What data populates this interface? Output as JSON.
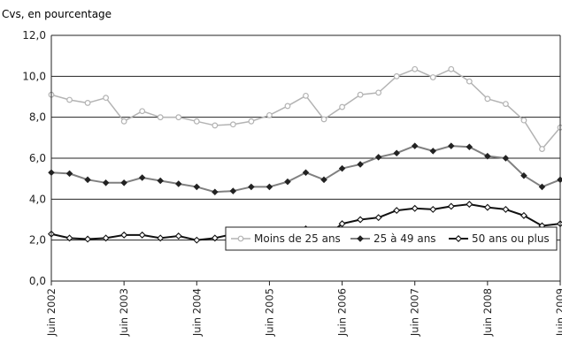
{
  "chart_data": {
    "type": "line",
    "ylabel": "Cvs, en pourcentage",
    "ylim": [
      0,
      12
    ],
    "yticks": [
      "0,0",
      "2,0",
      "4,0",
      "6,0",
      "8,0",
      "10,0",
      "12,0"
    ],
    "ytick_values": [
      0,
      2,
      4,
      6,
      8,
      10,
      12
    ],
    "xtick_labels": [
      "Juin 2002",
      "Juin 2003",
      "Juin 2004",
      "Juin 2005",
      "Juin 2006",
      "Juin 2007",
      "Juin 2008",
      "Juin 2009"
    ],
    "grid": "horizontal",
    "legend_placement": "bottom-right",
    "series": [
      {
        "name": "Moins de 25 ans",
        "color": "#b3b3b3",
        "marker": "open-circle",
        "values": [
          9.1,
          8.85,
          8.7,
          8.95,
          7.8,
          8.3,
          8.0,
          8.0,
          7.8,
          7.6,
          7.65,
          7.8,
          8.1,
          8.55,
          9.05,
          7.9,
          8.5,
          9.1,
          9.2,
          10.0,
          10.35,
          9.95,
          10.35,
          9.75,
          8.9,
          8.65,
          7.85,
          6.45,
          7.5
        ]
      },
      {
        "name": "25 à 49 ans",
        "color": "#808080",
        "marker": "filled-diamond",
        "values": [
          5.3,
          5.25,
          4.95,
          4.8,
          4.8,
          5.05,
          4.9,
          4.75,
          4.6,
          4.35,
          4.4,
          4.6,
          4.6,
          4.85,
          5.3,
          4.95,
          5.5,
          5.7,
          6.05,
          6.25,
          6.6,
          6.35,
          6.6,
          6.55,
          6.1,
          6.0,
          5.15,
          4.6,
          4.95
        ]
      },
      {
        "name": "50 ans ou plus",
        "color": "#111111",
        "marker": "open-diamond",
        "values": [
          2.3,
          2.1,
          2.05,
          2.1,
          2.25,
          2.25,
          2.1,
          2.2,
          2.0,
          2.1,
          2.3,
          2.2,
          2.3,
          2.4,
          2.55,
          2.1,
          2.8,
          3.0,
          3.1,
          3.45,
          3.55,
          3.5,
          3.65,
          3.75,
          3.6,
          3.5,
          3.2,
          2.7,
          2.8
        ]
      }
    ]
  }
}
